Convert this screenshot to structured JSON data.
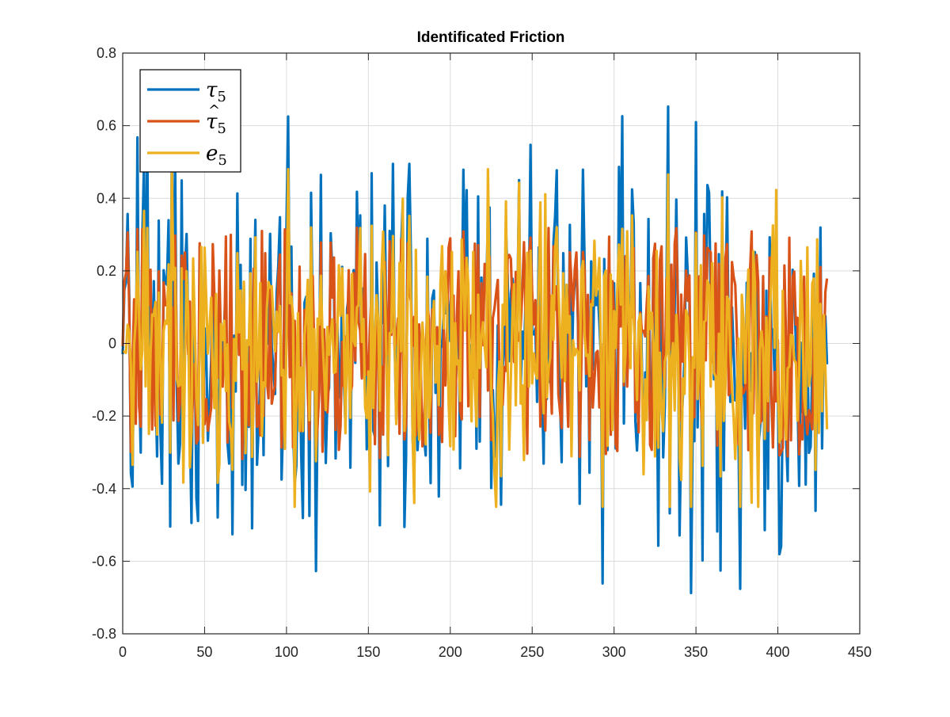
{
  "chart_data": {
    "type": "line",
    "title": "Identificated Friction",
    "xlabel": "",
    "ylabel": "",
    "xlim": [
      0,
      450
    ],
    "ylim": [
      -0.8,
      0.8
    ],
    "xticks": [
      "0",
      "50",
      "100",
      "150",
      "200",
      "250",
      "300",
      "350",
      "400",
      "450"
    ],
    "yticks": [
      "-0.8",
      "-0.6",
      "-0.4",
      "-0.2",
      "0",
      "0.2",
      "0.4",
      "0.6",
      "0.8"
    ],
    "grid": true,
    "legend_position": "top-left",
    "n_points": 431,
    "series": [
      {
        "name": "τ",
        "subscript": "5",
        "accent": "",
        "color": "#0072BD",
        "amplitude": 0.42,
        "peak_max": 0.78,
        "peak_min": -0.74
      },
      {
        "name": "τ",
        "subscript": "5",
        "accent": "^",
        "color": "#D95319",
        "amplitude": 0.32,
        "peak_max": 0.37,
        "peak_min": -0.38
      },
      {
        "name": "e",
        "subscript": "5",
        "accent": "",
        "color": "#EDB120",
        "amplitude": 0.2,
        "peak_max": 0.48,
        "peak_min": -0.45
      }
    ]
  }
}
